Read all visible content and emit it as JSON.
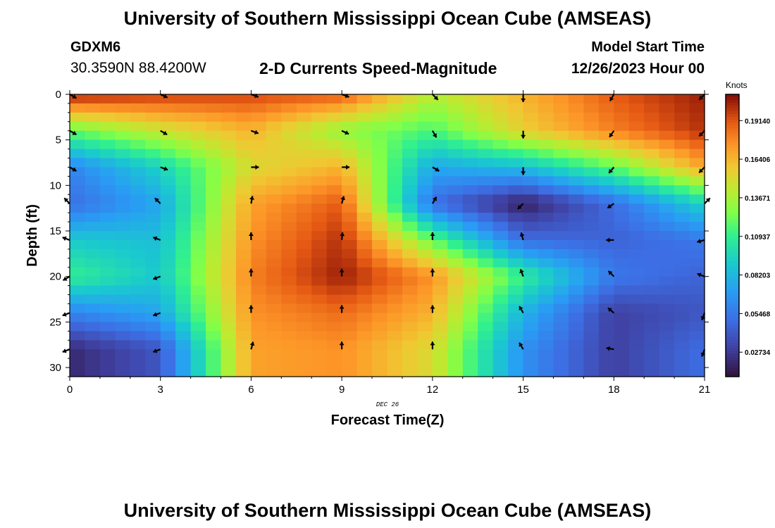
{
  "header": {
    "title": "University of Southern Mississippi Ocean Cube (AMSEAS)",
    "station": "GDXM6",
    "coordinates": "30.3590N  88.4200W",
    "plot_title": "2-D Currents Speed-Magnitude",
    "start_label": "Model Start Time",
    "start_time": "12/26/2023 Hour 00"
  },
  "footer": {
    "title": "University of Southern Mississippi Ocean Cube (AMSEAS)"
  },
  "chart_data": {
    "type": "heatmap",
    "title": "2-D Currents Speed-Magnitude",
    "xlabel": "Forecast Time(Z)",
    "ylabel": "Depth (ft)",
    "date_label": "DEC 26",
    "xlim": [
      0,
      21
    ],
    "ylim": [
      0,
      31
    ],
    "y_inverted": true,
    "x_ticks": [
      0,
      3,
      6,
      9,
      12,
      15,
      18,
      21
    ],
    "x_tick_labels": [
      "0",
      "3",
      "6",
      "9",
      "12",
      "15",
      "18",
      "21"
    ],
    "y_ticks": [
      0,
      5,
      10,
      15,
      20,
      25,
      30
    ],
    "y_tick_labels": [
      "0",
      "5",
      "10",
      "15",
      "20",
      "25",
      "30"
    ],
    "colorbar": {
      "label": "Knots",
      "min": 0.01,
      "max": 0.21,
      "ticks": [
        0.1914,
        0.16406,
        0.13671,
        0.10937,
        0.08203,
        0.05468,
        0.02734
      ],
      "tick_labels": [
        "0.19140",
        "0.16406",
        "0.13671",
        "0.10937",
        "0.08203",
        "0.05468",
        "0.02734"
      ]
    },
    "grid_hours": [
      0,
      3,
      6,
      9,
      12,
      15,
      18,
      21
    ],
    "grid_depths": [
      0,
      4,
      8,
      12,
      16,
      20,
      24,
      28
    ],
    "speed_knots": [
      [
        0.205,
        0.198,
        0.195,
        0.19,
        0.14,
        0.165,
        0.19,
        0.205
      ],
      [
        0.12,
        0.145,
        0.165,
        0.13,
        0.115,
        0.155,
        0.18,
        0.2
      ],
      [
        0.06,
        0.095,
        0.15,
        0.165,
        0.075,
        0.085,
        0.12,
        0.17
      ],
      [
        0.05,
        0.075,
        0.17,
        0.19,
        0.05,
        0.015,
        0.05,
        0.095
      ],
      [
        0.09,
        0.085,
        0.175,
        0.2,
        0.12,
        0.05,
        0.045,
        0.055
      ],
      [
        0.11,
        0.09,
        0.18,
        0.205,
        0.175,
        0.11,
        0.055,
        0.045
      ],
      [
        0.06,
        0.075,
        0.175,
        0.185,
        0.165,
        0.08,
        0.03,
        0.04
      ],
      [
        0.02,
        0.04,
        0.17,
        0.175,
        0.15,
        0.065,
        0.03,
        0.05
      ]
    ],
    "vector_dir_deg": [
      [
        120,
        115,
        110,
        110,
        135,
        180,
        210,
        225
      ],
      [
        120,
        120,
        110,
        115,
        150,
        180,
        215,
        225
      ],
      [
        120,
        110,
        90,
        90,
        120,
        180,
        220,
        225
      ],
      [
        315,
        315,
        10,
        15,
        30,
        225,
        235,
        45
      ],
      [
        290,
        290,
        0,
        5,
        0,
        345,
        270,
        255
      ],
      [
        240,
        250,
        0,
        0,
        0,
        340,
        315,
        290
      ],
      [
        250,
        250,
        0,
        0,
        0,
        330,
        310,
        200
      ],
      [
        250,
        250,
        15,
        0,
        0,
        330,
        280,
        200
      ]
    ]
  }
}
